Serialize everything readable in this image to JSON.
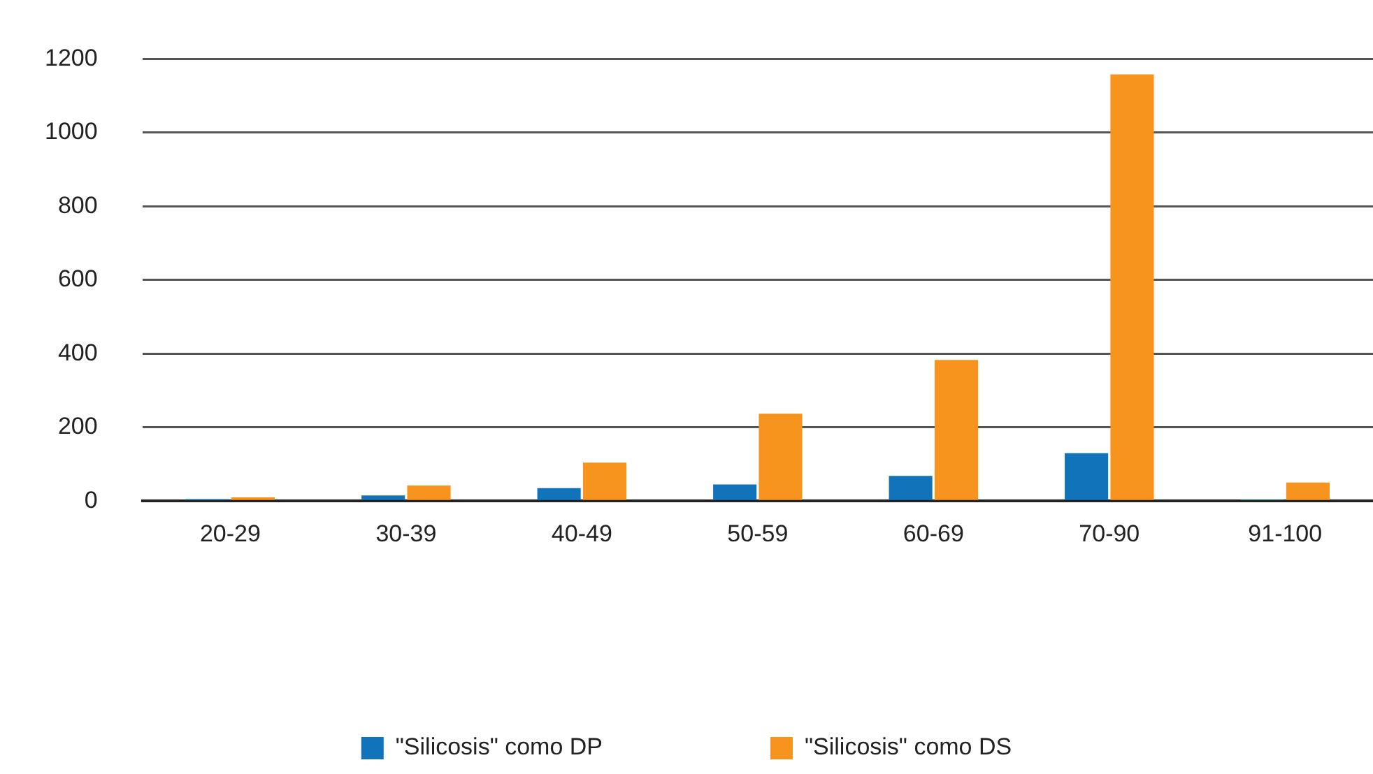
{
  "chart_data": {
    "type": "bar",
    "categories": [
      "20-29",
      "30-39",
      "40-49",
      "50-59",
      "60-69",
      "70-90",
      "91-100"
    ],
    "series": [
      {
        "name": "\"Silicosis\" como DP",
        "color": "#1174bb",
        "values": [
          5,
          15,
          35,
          45,
          68,
          130,
          4
        ]
      },
      {
        "name": "\"Silicosis\" como DS",
        "color": "#f6941e",
        "values": [
          10,
          42,
          104,
          237,
          383,
          1158,
          50
        ]
      }
    ],
    "ylim": [
      0,
      1200
    ],
    "yticks": [
      0,
      200,
      400,
      600,
      800,
      1000,
      1200
    ],
    "grid": "y",
    "legend": "bottom"
  }
}
